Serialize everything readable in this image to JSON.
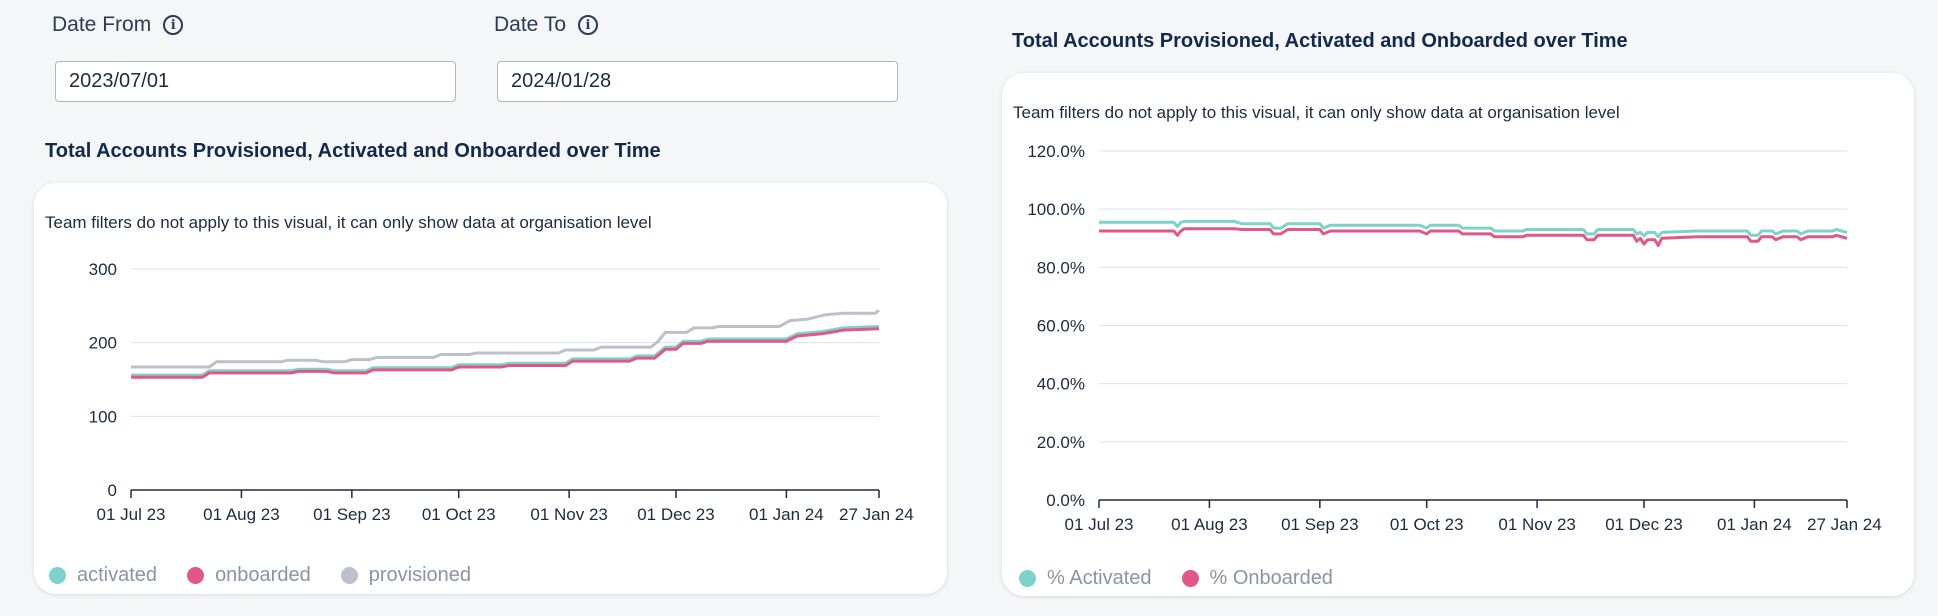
{
  "filters": {
    "date_from": {
      "label": "Date From",
      "value": "2023/07/01"
    },
    "date_to": {
      "label": "Date To",
      "value": "2024/01/28"
    }
  },
  "colors": {
    "activated": "#7fd2cc",
    "onboarded": "#e0578a",
    "provisioned": "#bdbfcc"
  },
  "chart_data": [
    {
      "type": "line",
      "title": "Total Accounts Provisioned, Activated and Onboarded over Time",
      "note": "Team filters do not apply to this visual, it can only show data at organisation level",
      "categories": [
        "01 Jul 23",
        "01 Aug 23",
        "01 Sep 23",
        "01 Oct 23",
        "01 Nov 23",
        "01 Dec 23",
        "01 Jan 24",
        "27 Jan 24"
      ],
      "x_day_index": [
        0,
        31,
        62,
        92,
        123,
        153,
        184,
        210
      ],
      "yticks": [
        "0",
        "100",
        "200",
        "300"
      ],
      "ylim": [
        0,
        300
      ],
      "series": [
        {
          "name": "activated",
          "color_key": "activated",
          "points": [
            [
              0,
              156
            ],
            [
              20,
              156
            ],
            [
              22,
              162
            ],
            [
              45,
              162
            ],
            [
              47,
              164
            ],
            [
              55,
              164
            ],
            [
              57,
              162
            ],
            [
              66,
              162
            ],
            [
              68,
              166
            ],
            [
              90,
              166
            ],
            [
              92,
              170
            ],
            [
              104,
              170
            ],
            [
              106,
              172
            ],
            [
              122,
              172
            ],
            [
              124,
              178
            ],
            [
              140,
              178
            ],
            [
              142,
              182
            ],
            [
              147,
              182
            ],
            [
              150,
              194
            ],
            [
              153,
              194
            ],
            [
              155,
              202
            ],
            [
              160,
              202
            ],
            [
              162,
              205
            ],
            [
              184,
              205
            ],
            [
              187,
              212
            ],
            [
              194,
              215
            ],
            [
              200,
              220
            ],
            [
              210,
              222
            ]
          ]
        },
        {
          "name": "onboarded",
          "color_key": "onboarded",
          "points": [
            [
              0,
              153
            ],
            [
              20,
              153
            ],
            [
              22,
              159
            ],
            [
              45,
              159
            ],
            [
              47,
              161
            ],
            [
              55,
              161
            ],
            [
              57,
              159
            ],
            [
              66,
              159
            ],
            [
              68,
              163
            ],
            [
              90,
              163
            ],
            [
              92,
              167
            ],
            [
              104,
              167
            ],
            [
              106,
              169
            ],
            [
              122,
              169
            ],
            [
              124,
              175
            ],
            [
              140,
              175
            ],
            [
              142,
              179
            ],
            [
              147,
              179
            ],
            [
              150,
              191
            ],
            [
              153,
              191
            ],
            [
              155,
              199
            ],
            [
              160,
              199
            ],
            [
              162,
              202
            ],
            [
              184,
              202
            ],
            [
              187,
              209
            ],
            [
              194,
              212
            ],
            [
              200,
              217
            ],
            [
              210,
              219
            ]
          ]
        },
        {
          "name": "provisioned",
          "color_key": "provisioned",
          "points": [
            [
              0,
              167
            ],
            [
              22,
              167
            ],
            [
              24,
              174
            ],
            [
              42,
              174
            ],
            [
              44,
              176
            ],
            [
              52,
              176
            ],
            [
              54,
              174
            ],
            [
              60,
              174
            ],
            [
              62,
              177
            ],
            [
              67,
              177
            ],
            [
              69,
              180
            ],
            [
              85,
              180
            ],
            [
              87,
              184
            ],
            [
              95,
              184
            ],
            [
              97,
              186
            ],
            [
              120,
              186
            ],
            [
              122,
              190
            ],
            [
              130,
              190
            ],
            [
              132,
              194
            ],
            [
              146,
              194
            ],
            [
              148,
              202
            ],
            [
              150,
              214
            ],
            [
              156,
              214
            ],
            [
              158,
              220
            ],
            [
              163,
              220
            ],
            [
              165,
              222
            ],
            [
              182,
              222
            ],
            [
              185,
              230
            ],
            [
              190,
              232
            ],
            [
              195,
              238
            ],
            [
              200,
              240
            ],
            [
              209,
              240
            ],
            [
              210,
              244
            ]
          ]
        }
      ],
      "legend": [
        "activated",
        "onboarded",
        "provisioned"
      ]
    },
    {
      "type": "line",
      "title": "Total Accounts Provisioned, Activated and Onboarded over Time",
      "note": "Team filters do not apply to this visual, it can only show data at organisation level",
      "categories": [
        "01 Jul 23",
        "01 Aug 23",
        "01 Sep 23",
        "01 Oct 23",
        "01 Nov 23",
        "01 Dec 23",
        "01 Jan 24",
        "27 Jan 24"
      ],
      "x_day_index": [
        0,
        31,
        62,
        92,
        123,
        153,
        184,
        210
      ],
      "yticks": [
        "0.0%",
        "20.0%",
        "40.0%",
        "60.0%",
        "80.0%",
        "100.0%",
        "120.0%"
      ],
      "ylim": [
        0,
        120
      ],
      "series": [
        {
          "name": "% Activated",
          "color_key": "activated",
          "points": [
            [
              0,
              95.5
            ],
            [
              21,
              95.5
            ],
            [
              22,
              94
            ],
            [
              23,
              95.5
            ],
            [
              24,
              95.8
            ],
            [
              38,
              95.8
            ],
            [
              40,
              95
            ],
            [
              48,
              95
            ],
            [
              49,
              93.5
            ],
            [
              51,
              93.5
            ],
            [
              53,
              95
            ],
            [
              62,
              95
            ],
            [
              63,
              93.5
            ],
            [
              65,
              94.5
            ],
            [
              90,
              94.5
            ],
            [
              92,
              93.5
            ],
            [
              93,
              94.5
            ],
            [
              101,
              94.5
            ],
            [
              102,
              93.5
            ],
            [
              110,
              93.5
            ],
            [
              111,
              92.5
            ],
            [
              119,
              92.5
            ],
            [
              120,
              93
            ],
            [
              136,
              93
            ],
            [
              137,
              91.5
            ],
            [
              139,
              91.5
            ],
            [
              140,
              93
            ],
            [
              150,
              93
            ],
            [
              151,
              91.5
            ],
            [
              152,
              92
            ],
            [
              153,
              90.8
            ],
            [
              154,
              92
            ],
            [
              156,
              92
            ],
            [
              157,
              90.5
            ],
            [
              158,
              92
            ],
            [
              168,
              92.5
            ],
            [
              182,
              92.5
            ],
            [
              183,
              91
            ],
            [
              185,
              91
            ],
            [
              186,
              92.5
            ],
            [
              189,
              92.5
            ],
            [
              190,
              91.5
            ],
            [
              192,
              92.5
            ],
            [
              196,
              92.5
            ],
            [
              197,
              91.5
            ],
            [
              199,
              92.5
            ],
            [
              206,
              92.5
            ],
            [
              207,
              93
            ],
            [
              210,
              92
            ]
          ]
        },
        {
          "name": "% Onboarded",
          "color_key": "onboarded",
          "points": [
            [
              0,
              92.5
            ],
            [
              21,
              92.5
            ],
            [
              22,
              91
            ],
            [
              23,
              92.5
            ],
            [
              24,
              93.3
            ],
            [
              38,
              93.3
            ],
            [
              40,
              93
            ],
            [
              48,
              93
            ],
            [
              49,
              91.5
            ],
            [
              51,
              91.5
            ],
            [
              53,
              93
            ],
            [
              62,
              93
            ],
            [
              63,
              91.5
            ],
            [
              65,
              92.5
            ],
            [
              90,
              92.5
            ],
            [
              92,
              91.5
            ],
            [
              93,
              92.5
            ],
            [
              101,
              92.5
            ],
            [
              102,
              91.5
            ],
            [
              110,
              91.5
            ],
            [
              111,
              90.5
            ],
            [
              119,
              90.5
            ],
            [
              120,
              91
            ],
            [
              136,
              91
            ],
            [
              137,
              89.5
            ],
            [
              139,
              89.5
            ],
            [
              140,
              91
            ],
            [
              150,
              91
            ],
            [
              151,
              89
            ],
            [
              152,
              90
            ],
            [
              153,
              88
            ],
            [
              154,
              89.5
            ],
            [
              156,
              89.5
            ],
            [
              157,
              87.5
            ],
            [
              158,
              90
            ],
            [
              168,
              90.5
            ],
            [
              182,
              90.5
            ],
            [
              183,
              89
            ],
            [
              185,
              89
            ],
            [
              186,
              90.5
            ],
            [
              189,
              90.5
            ],
            [
              190,
              89.5
            ],
            [
              192,
              90.5
            ],
            [
              196,
              90.5
            ],
            [
              197,
              89.5
            ],
            [
              199,
              90.5
            ],
            [
              206,
              90.5
            ],
            [
              207,
              91
            ],
            [
              210,
              90
            ]
          ]
        }
      ],
      "legend": [
        "% Activated",
        "% Onboarded"
      ]
    }
  ]
}
